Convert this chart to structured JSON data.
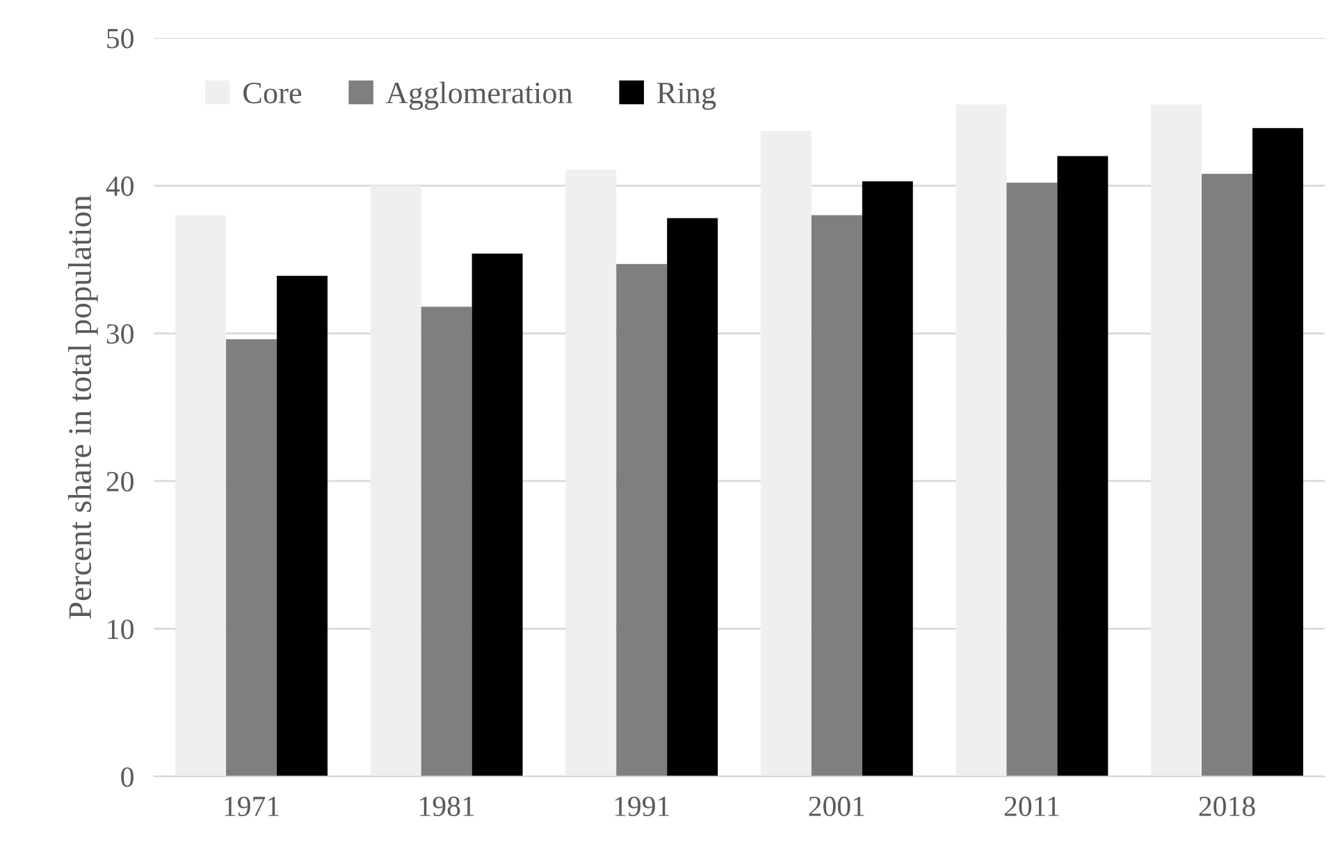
{
  "chart_data": {
    "type": "bar",
    "ylabel": "Percent share in total population",
    "categories": [
      "1971",
      "1981",
      "1991",
      "2001",
      "2011",
      "2018"
    ],
    "series": [
      {
        "name": "Core",
        "color": "#efefef",
        "values": [
          38.0,
          40.0,
          41.1,
          43.7,
          45.5,
          45.5
        ]
      },
      {
        "name": "Agglomeration",
        "color": "#7f7f7f",
        "values": [
          29.6,
          31.8,
          34.7,
          38.0,
          40.2,
          40.8
        ]
      },
      {
        "name": "Ring",
        "color": "#000000",
        "values": [
          33.9,
          35.4,
          37.8,
          40.3,
          42.0,
          43.9
        ]
      }
    ],
    "ylim": [
      0,
      50
    ],
    "yticks": [
      0,
      10,
      20,
      30,
      40,
      50
    ],
    "grid": "y",
    "legend": "top left"
  }
}
